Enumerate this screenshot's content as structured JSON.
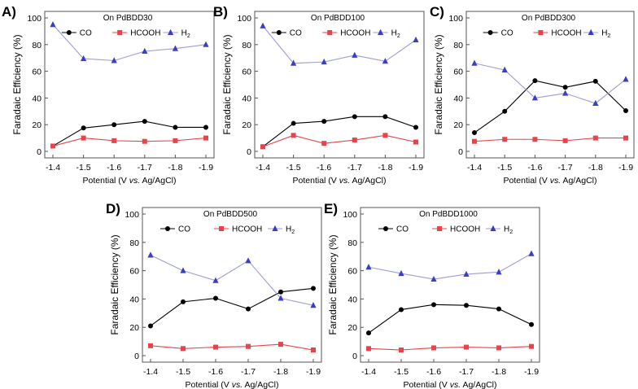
{
  "chart_data": [
    {
      "type": "line",
      "letter": "A)",
      "title": "On PdBDD30",
      "xlabel": "Potential (V vs. Ag/AgCl)",
      "xlabel_parts": [
        "Potential (V ",
        "vs.",
        " Ag/AgCl)"
      ],
      "ylabel": "Faradaic Efficiency (%)",
      "categories": [
        "-1.4",
        "-1.5",
        "-1.6",
        "-1.7",
        "-1.8",
        "-1.9"
      ],
      "ylim": [
        0,
        100
      ],
      "yticks": [
        "0",
        "20",
        "40",
        "60",
        "80",
        "100"
      ],
      "legend": [
        "CO",
        "HCOOH",
        "H2"
      ],
      "series": [
        {
          "name": "CO",
          "values": [
            4,
            17.5,
            20,
            22.5,
            18,
            18
          ]
        },
        {
          "name": "HCOOH",
          "values": [
            4,
            10,
            8,
            7.5,
            8,
            10
          ]
        },
        {
          "name": "H2",
          "values": [
            95,
            69.5,
            68,
            75,
            77,
            80
          ]
        }
      ]
    },
    {
      "type": "line",
      "letter": "B)",
      "title": "On PdBDD100",
      "xlabel": "Potential (V vs. Ag/AgCl)",
      "xlabel_parts": [
        "Potential (V ",
        "vs.",
        " Ag/AgCl)"
      ],
      "ylabel": "Faradaic Efficiency (%)",
      "categories": [
        "-1.4",
        "-1.5",
        "-1.6",
        "-1.7",
        "-1.8",
        "-1.9"
      ],
      "ylim": [
        0,
        100
      ],
      "yticks": [
        "0",
        "20",
        "40",
        "60",
        "80",
        "100"
      ],
      "legend": [
        "CO",
        "HCOOH",
        "H2"
      ],
      "series": [
        {
          "name": "CO",
          "values": [
            3.5,
            21,
            22.5,
            26,
            26,
            18
          ]
        },
        {
          "name": "HCOOH",
          "values": [
            3.5,
            12,
            6,
            8.5,
            12,
            7
          ]
        },
        {
          "name": "H2",
          "values": [
            94,
            66,
            67,
            72,
            67.5,
            83.5
          ]
        }
      ]
    },
    {
      "type": "line",
      "letter": "C)",
      "title": "On PdBDD300",
      "xlabel": "Potential (V vs. Ag/AgCl)",
      "xlabel_parts": [
        "Potential (V ",
        "vs.",
        " Ag/AgCl)"
      ],
      "ylabel": "Faradaic Efficiency (%)",
      "categories": [
        "-1.4",
        "-1.5",
        "-1.6",
        "-1.7",
        "-1.8",
        "-1.9"
      ],
      "ylim": [
        0,
        100
      ],
      "yticks": [
        "0",
        "20",
        "40",
        "60",
        "80",
        "100"
      ],
      "legend": [
        "CO",
        "HCOOH",
        "H2"
      ],
      "series": [
        {
          "name": "CO",
          "values": [
            14,
            30,
            53,
            48,
            52.5,
            30.5
          ]
        },
        {
          "name": "HCOOH",
          "values": [
            7.5,
            9,
            9,
            8,
            10,
            10
          ]
        },
        {
          "name": "H2",
          "values": [
            66,
            61,
            40,
            43.5,
            36,
            54
          ]
        }
      ]
    },
    {
      "type": "line",
      "letter": "D)",
      "title": "On PdBDD500",
      "xlabel": "Potential (V vs. Ag/AgCl)",
      "xlabel_parts": [
        "Potential (V ",
        "vs.",
        " Ag/AgCl)"
      ],
      "ylabel": "Faradaic Efficiency (%)",
      "categories": [
        "-1.4",
        "-1.5",
        "-1.6",
        "-1.7",
        "-1.8",
        "-1.9"
      ],
      "ylim": [
        0,
        100
      ],
      "yticks": [
        "0",
        "20",
        "40",
        "60",
        "80",
        "100"
      ],
      "legend": [
        "CO",
        "HCOOH",
        "H2"
      ],
      "series": [
        {
          "name": "CO",
          "values": [
            21,
            38,
            40.5,
            33,
            45,
            47.5
          ]
        },
        {
          "name": "HCOOH",
          "values": [
            7,
            5,
            6,
            6.5,
            8,
            4
          ]
        },
        {
          "name": "H2",
          "values": [
            71,
            60,
            53,
            67,
            40.5,
            35.5
          ]
        }
      ]
    },
    {
      "type": "line",
      "letter": "E)",
      "title": "On PdBDD1000",
      "xlabel": "Potential (V vs. Ag/AgCl)",
      "xlabel_parts": [
        "Potential (V ",
        "vs.",
        " Ag/AgCl)"
      ],
      "ylabel": "Faradaic Efficiency (%)",
      "categories": [
        "-1.4",
        "-1.5",
        "-1.6",
        "-1.7",
        "-1.8",
        "-1.9"
      ],
      "ylim": [
        0,
        100
      ],
      "yticks": [
        "0",
        "20",
        "40",
        "60",
        "80",
        "100"
      ],
      "legend": [
        "CO",
        "HCOOH",
        "H2"
      ],
      "series": [
        {
          "name": "CO",
          "values": [
            16,
            32.5,
            36,
            35.5,
            33,
            22
          ]
        },
        {
          "name": "HCOOH",
          "values": [
            5,
            4,
            5.5,
            6,
            5.5,
            6.5
          ]
        },
        {
          "name": "H2",
          "values": [
            62.5,
            58,
            54,
            57.5,
            59,
            72
          ]
        }
      ]
    }
  ],
  "colors": {
    "CO": "#000000",
    "HCOOH": "#e8434a",
    "H2": "#9c9cd4",
    "H2_marker": "#3a3ec4"
  }
}
